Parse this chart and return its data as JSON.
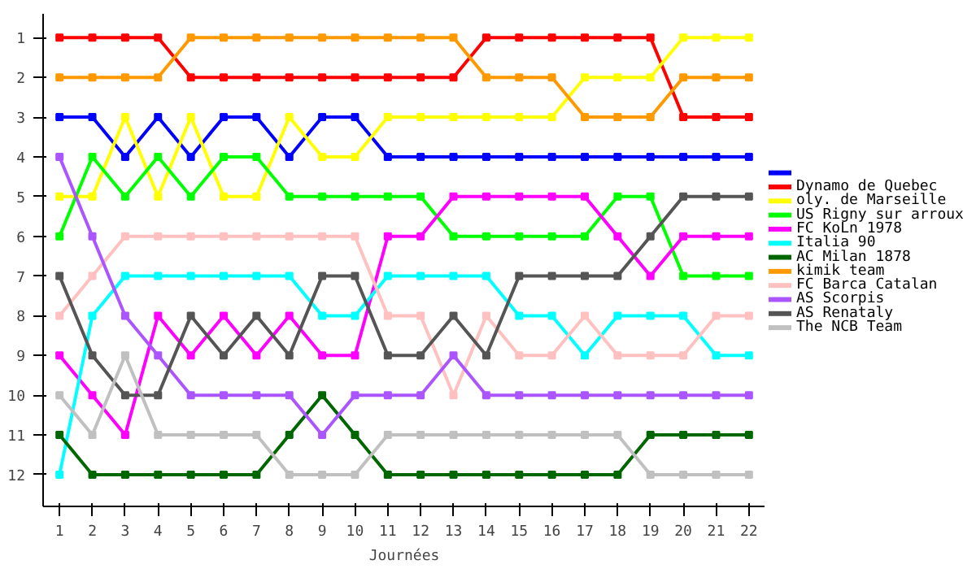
{
  "chart_data": {
    "type": "line",
    "xlabel": "Journées",
    "x": [
      1,
      2,
      3,
      4,
      5,
      6,
      7,
      8,
      9,
      10,
      11,
      12,
      13,
      14,
      15,
      16,
      17,
      18,
      19,
      20,
      21,
      22
    ],
    "xlim": [
      0.5,
      22.5
    ],
    "ylim": [
      12.8,
      0.4
    ],
    "xticks": [
      1,
      2,
      3,
      4,
      5,
      6,
      7,
      8,
      9,
      10,
      11,
      12,
      13,
      14,
      15,
      16,
      17,
      18,
      19,
      20,
      21,
      22
    ],
    "yticks": [
      1,
      2,
      3,
      4,
      5,
      6,
      7,
      8,
      9,
      10,
      11,
      12
    ],
    "grid": false,
    "legend": "right",
    "marker": "square",
    "line_style": "solid",
    "series": [
      {
        "color": "#0000ff",
        "values": [
          3,
          3,
          4,
          3,
          4,
          3,
          3,
          4,
          3,
          3,
          4,
          4,
          4,
          4,
          4,
          4,
          4,
          4,
          4,
          4,
          4,
          4
        ]
      },
      {
        "name": "Dynamo de Quebec",
        "color": "#ff0000",
        "values": [
          1,
          1,
          1,
          1,
          2,
          2,
          2,
          2,
          2,
          2,
          2,
          2,
          2,
          1,
          1,
          1,
          1,
          1,
          1,
          3,
          3,
          3
        ]
      },
      {
        "name": "oly. de Marseille",
        "color": "#ffff00",
        "values": [
          5,
          5,
          3,
          5,
          3,
          5,
          5,
          3,
          4,
          4,
          3,
          3,
          3,
          3,
          3,
          3,
          2,
          2,
          2,
          1,
          1,
          1
        ]
      },
      {
        "name": "US Rigny sur arroux",
        "color": "#00ff00",
        "values": [
          6,
          4,
          5,
          4,
          5,
          4,
          4,
          5,
          5,
          5,
          5,
          5,
          6,
          6,
          6,
          6,
          6,
          5,
          5,
          7,
          7,
          7
        ]
      },
      {
        "name": "FC KoLn 1978",
        "color": "#ff00ff",
        "values": [
          9,
          10,
          11,
          8,
          9,
          8,
          9,
          8,
          9,
          9,
          6,
          6,
          5,
          5,
          5,
          5,
          5,
          6,
          7,
          6,
          6,
          6
        ]
      },
      {
        "name": "Italia 90",
        "color": "#00ffff",
        "values": [
          12,
          8,
          7,
          7,
          7,
          7,
          7,
          7,
          8,
          8,
          7,
          7,
          7,
          7,
          8,
          8,
          9,
          8,
          8,
          8,
          9,
          9
        ]
      },
      {
        "name": "AC Milan 1878",
        "color": "#006600",
        "values": [
          11,
          12,
          12,
          12,
          12,
          12,
          12,
          11,
          10,
          11,
          12,
          12,
          12,
          12,
          12,
          12,
          12,
          12,
          11,
          11,
          11,
          11
        ]
      },
      {
        "name": "kimik team",
        "color": "#ff9900",
        "values": [
          2,
          2,
          2,
          2,
          1,
          1,
          1,
          1,
          1,
          1,
          1,
          1,
          1,
          2,
          2,
          2,
          3,
          3,
          3,
          2,
          2,
          2
        ]
      },
      {
        "name": "FC Barca Catalan",
        "color": "#ffc0c0",
        "values": [
          8,
          7,
          6,
          6,
          6,
          6,
          6,
          6,
          6,
          6,
          8,
          8,
          10,
          8,
          9,
          9,
          8,
          9,
          9,
          9,
          8,
          8
        ]
      },
      {
        "name": "AS Scorpis",
        "color": "#aa55ff",
        "values": [
          4,
          6,
          8,
          9,
          10,
          10,
          10,
          10,
          11,
          10,
          10,
          10,
          9,
          10,
          10,
          10,
          10,
          10,
          10,
          10,
          10,
          10
        ]
      },
      {
        "name": "AS Renataly",
        "color": "#555555",
        "values": [
          7,
          9,
          10,
          10,
          8,
          9,
          8,
          9,
          7,
          7,
          9,
          9,
          8,
          9,
          7,
          7,
          7,
          7,
          6,
          5,
          5,
          5
        ]
      },
      {
        "name": "The NCB Team",
        "color": "#c0c0c0",
        "values": [
          10,
          11,
          9,
          11,
          11,
          11,
          11,
          12,
          12,
          12,
          11,
          11,
          11,
          11,
          11,
          11,
          11,
          11,
          12,
          12,
          12,
          12
        ]
      }
    ]
  }
}
